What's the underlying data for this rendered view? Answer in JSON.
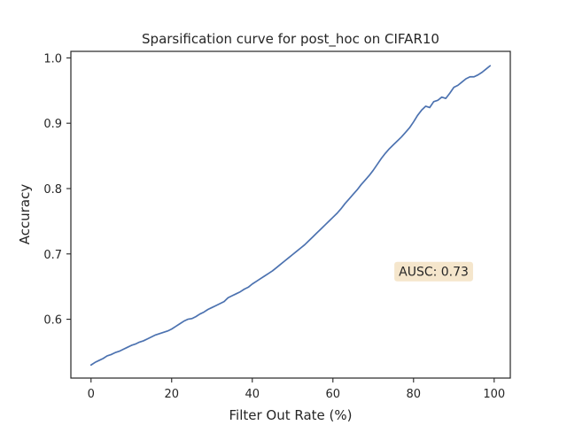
{
  "chart_data": {
    "type": "line",
    "title": "Sparsification curve for post_hoc on CIFAR10",
    "xlabel": "Filter Out Rate (%)",
    "ylabel": "Accuracy",
    "xlim": [
      -5,
      104
    ],
    "ylim": [
      0.51,
      1.01
    ],
    "xticks": [
      0,
      20,
      40,
      60,
      80,
      100
    ],
    "xtick_labels": [
      "0",
      "20",
      "40",
      "60",
      "80",
      "100"
    ],
    "yticks": [
      0.6,
      0.7,
      0.8,
      0.9,
      1.0
    ],
    "ytick_labels": [
      "0.6",
      "0.7",
      "0.8",
      "0.9",
      "1.0"
    ],
    "grid": false,
    "series": [
      {
        "color": "#4c72b0",
        "x": [
          0,
          1,
          2,
          3,
          4,
          5,
          6,
          7,
          8,
          9,
          10,
          11,
          12,
          13,
          14,
          15,
          16,
          17,
          18,
          19,
          20,
          21,
          22,
          23,
          24,
          25,
          26,
          27,
          28,
          29,
          30,
          31,
          32,
          33,
          34,
          35,
          36,
          37,
          38,
          39,
          40,
          41,
          42,
          43,
          44,
          45,
          46,
          47,
          48,
          49,
          50,
          51,
          52,
          53,
          54,
          55,
          56,
          57,
          58,
          59,
          60,
          61,
          62,
          63,
          64,
          65,
          66,
          67,
          68,
          69,
          70,
          71,
          72,
          73,
          74,
          75,
          76,
          77,
          78,
          79,
          80,
          81,
          82,
          83,
          84,
          85,
          86,
          87,
          88,
          89,
          90,
          91,
          92,
          93,
          94,
          95,
          96,
          97,
          98,
          99
        ],
        "y": [
          0.53,
          0.534,
          0.537,
          0.54,
          0.544,
          0.546,
          0.549,
          0.551,
          0.554,
          0.557,
          0.56,
          0.562,
          0.565,
          0.567,
          0.57,
          0.573,
          0.576,
          0.578,
          0.58,
          0.582,
          0.585,
          0.589,
          0.593,
          0.597,
          0.6,
          0.601,
          0.604,
          0.608,
          0.611,
          0.615,
          0.618,
          0.621,
          0.624,
          0.627,
          0.633,
          0.636,
          0.639,
          0.642,
          0.646,
          0.649,
          0.654,
          0.658,
          0.662,
          0.666,
          0.67,
          0.674,
          0.679,
          0.684,
          0.689,
          0.694,
          0.699,
          0.704,
          0.709,
          0.714,
          0.72,
          0.726,
          0.732,
          0.738,
          0.744,
          0.75,
          0.756,
          0.762,
          0.769,
          0.777,
          0.784,
          0.791,
          0.798,
          0.806,
          0.813,
          0.82,
          0.828,
          0.837,
          0.846,
          0.854,
          0.861,
          0.867,
          0.873,
          0.879,
          0.886,
          0.893,
          0.902,
          0.912,
          0.92,
          0.926,
          0.924,
          0.933,
          0.935,
          0.94,
          0.938,
          0.946,
          0.955,
          0.958,
          0.963,
          0.968,
          0.971,
          0.971,
          0.974,
          0.978,
          0.983,
          0.988
        ]
      }
    ],
    "annotations": [
      {
        "text": "AUSC: 0.73",
        "x": 85,
        "y": 0.673,
        "background": "#f5e6cc"
      }
    ]
  }
}
